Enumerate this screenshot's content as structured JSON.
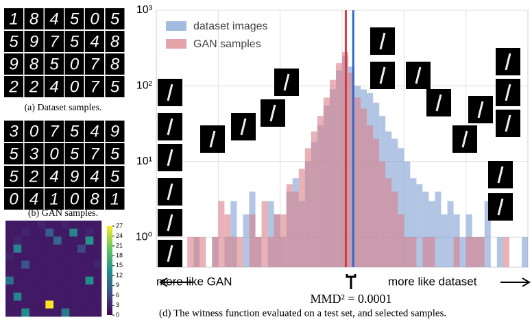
{
  "dataset_samples": {
    "caption": "(a) Dataset samples.",
    "rows": [
      [
        "1",
        "8",
        "4",
        "5",
        "0",
        "5"
      ],
      [
        "5",
        "9",
        "7",
        "5",
        "4",
        "8"
      ],
      [
        "9",
        "8",
        "5",
        "0",
        "7",
        "8"
      ],
      [
        "2",
        "2",
        "4",
        "0",
        "7",
        "5"
      ]
    ]
  },
  "gan_samples": {
    "caption": "(b) GAN samples.",
    "rows": [
      [
        "3",
        "0",
        "7",
        "5",
        "4",
        "9"
      ],
      [
        "5",
        "3",
        "0",
        "5",
        "7",
        "5"
      ],
      [
        "5",
        "2",
        "4",
        "9",
        "4",
        "5"
      ],
      [
        "0",
        "4",
        "1",
        "0",
        "8",
        "1"
      ]
    ]
  },
  "heatmap": {
    "type": "heatmap",
    "colorbar_ticks": [
      0,
      3,
      6,
      9,
      12,
      15,
      18,
      21,
      24,
      27
    ],
    "clim": [
      0,
      27
    ],
    "values": [
      [
        2,
        2,
        2,
        2,
        3,
        2,
        2,
        3,
        2,
        2,
        2,
        2
      ],
      [
        2,
        2,
        3,
        2,
        2,
        8,
        2,
        2,
        12,
        2,
        3,
        2
      ],
      [
        2,
        3,
        2,
        2,
        2,
        2,
        9,
        2,
        2,
        2,
        14,
        2
      ],
      [
        2,
        12,
        2,
        2,
        2,
        2,
        2,
        2,
        2,
        6,
        2,
        2
      ],
      [
        3,
        2,
        2,
        2,
        2,
        2,
        2,
        2,
        2,
        2,
        2,
        2
      ],
      [
        2,
        2,
        7,
        2,
        2,
        2,
        2,
        2,
        2,
        2,
        2,
        3
      ],
      [
        2,
        2,
        2,
        2,
        2,
        2,
        2,
        2,
        2,
        2,
        2,
        2
      ],
      [
        10,
        2,
        2,
        2,
        2,
        2,
        2,
        2,
        2,
        2,
        13,
        2
      ],
      [
        2,
        2,
        2,
        2,
        2,
        2,
        2,
        2,
        2,
        2,
        2,
        2
      ],
      [
        2,
        12,
        2,
        2,
        2,
        2,
        2,
        2,
        2,
        2,
        2,
        2
      ],
      [
        2,
        2,
        2,
        2,
        2,
        27,
        2,
        2,
        2,
        2,
        2,
        2
      ],
      [
        2,
        2,
        13,
        2,
        2,
        2,
        2,
        11,
        2,
        2,
        2,
        2
      ]
    ]
  },
  "chart_data": {
    "type": "histogram",
    "log_y": true,
    "ylim": [
      0.4,
      1000
    ],
    "yticks": [
      {
        "value": 1,
        "label": "10⁰"
      },
      {
        "value": 10,
        "label": "10¹"
      },
      {
        "value": 100,
        "label": "10²"
      },
      {
        "value": 1000,
        "label": "10³"
      }
    ],
    "xlim": [
      0,
      60
    ],
    "bins": [
      0,
      1,
      2,
      3,
      4,
      5,
      6,
      7,
      8,
      9,
      10,
      11,
      12,
      13,
      14,
      15,
      16,
      17,
      18,
      19,
      20,
      21,
      22,
      23,
      24,
      25,
      26,
      27,
      28,
      29,
      30,
      31,
      32,
      33,
      34,
      35,
      36,
      37,
      38,
      39,
      40,
      41,
      42,
      43,
      44,
      45,
      46,
      47,
      48,
      49,
      50,
      51,
      52,
      53,
      54,
      55,
      56,
      57,
      58,
      59,
      60
    ],
    "grid": true,
    "legend": "upper-left",
    "series": [
      {
        "name": "dataset images",
        "color": "#7f9fd4",
        "values": [
          0,
          0,
          0,
          0,
          0,
          0,
          1,
          0,
          0,
          1,
          0,
          1,
          3,
          0,
          2,
          4,
          1,
          0,
          3,
          2,
          1,
          4,
          6,
          3,
          10,
          18,
          30,
          55,
          90,
          160,
          250,
          180,
          100,
          90,
          80,
          60,
          40,
          25,
          20,
          15,
          10,
          6,
          5,
          4,
          3,
          4,
          2,
          3,
          2,
          1,
          2,
          1,
          1,
          3,
          0,
          1,
          0,
          0,
          0,
          1
        ]
      },
      {
        "name": "GAN samples",
        "color": "#d97e86",
        "values": [
          0,
          0,
          0,
          0,
          0,
          1,
          1,
          1,
          0,
          1,
          3,
          2,
          1,
          1,
          0,
          2,
          1,
          3,
          1,
          2,
          2,
          5,
          4,
          8,
          15,
          25,
          40,
          70,
          120,
          200,
          280,
          150,
          70,
          50,
          30,
          20,
          10,
          6,
          4,
          2,
          1,
          1,
          0,
          1,
          1,
          0,
          0,
          0,
          1,
          0,
          1,
          1,
          1,
          0,
          0,
          0,
          1,
          0,
          0,
          0
        ]
      }
    ],
    "mean_lines": [
      {
        "x": 30.6,
        "color": "#d9353f"
      },
      {
        "x": 31.8,
        "color": "#3466c4"
      }
    ],
    "left_annotation": "more like GAN",
    "right_annotation": "more like dataset",
    "mmd_label": "MMD² = 0.0001",
    "caption": "(d) The witness function evaluated on a test set, and selected samples."
  }
}
